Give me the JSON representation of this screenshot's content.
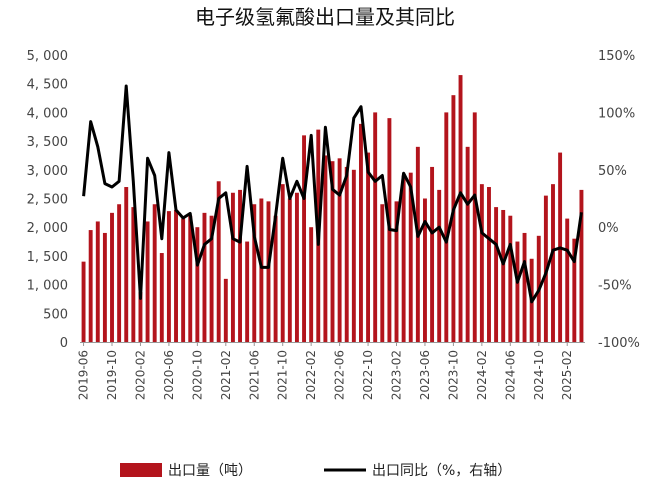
{
  "chart_data": {
    "type": "bar",
    "title": "电子级氢氟酸出口量及其同比",
    "colors": {
      "bar": "#B3141C",
      "line": "#000000"
    },
    "y_left": {
      "ylim": [
        0,
        5000
      ],
      "ticks": [
        0,
        500,
        1000,
        1500,
        2000,
        2500,
        3000,
        3500,
        4000,
        4500,
        5000
      ],
      "tick_labels": [
        "0",
        "500",
        "1, 000",
        "1, 500",
        "2, 000",
        "2, 500",
        "3, 000",
        "3, 500",
        "4, 000",
        "4, 500",
        "5, 000"
      ]
    },
    "y_right": {
      "ylim": [
        -100,
        150
      ],
      "ticks": [
        -100,
        -50,
        0,
        50,
        100,
        150
      ],
      "tick_labels": [
        "-100%",
        "-50%",
        "0%",
        "50%",
        "100%",
        "150%"
      ]
    },
    "x_tick_labels": [
      {
        "index": 0,
        "label": "2019-06"
      },
      {
        "index": 4,
        "label": "2019-10"
      },
      {
        "index": 8,
        "label": "2020-02"
      },
      {
        "index": 12,
        "label": "2020-06"
      },
      {
        "index": 16,
        "label": "2020-10"
      },
      {
        "index": 20,
        "label": "2021-02"
      },
      {
        "index": 24,
        "label": "2021-06"
      },
      {
        "index": 28,
        "label": "2021-10"
      },
      {
        "index": 32,
        "label": "2022-02"
      },
      {
        "index": 36,
        "label": "2022-06"
      },
      {
        "index": 40,
        "label": "2022-10"
      },
      {
        "index": 44,
        "label": "2023-02"
      },
      {
        "index": 48,
        "label": "2023-06"
      },
      {
        "index": 52,
        "label": "2023-10"
      },
      {
        "index": 56,
        "label": "2024-02"
      },
      {
        "index": 60,
        "label": "2024-06"
      },
      {
        "index": 64,
        "label": "2024-10"
      },
      {
        "index": 68,
        "label": "2025-02"
      }
    ],
    "series": [
      {
        "name": "出口量（吨）",
        "type": "bar",
        "axis": "left",
        "values": [
          1400,
          1950,
          2100,
          1900,
          2250,
          2400,
          2700,
          2350,
          870,
          2100,
          2400,
          1550,
          2280,
          2300,
          2150,
          2200,
          2000,
          2250,
          2200,
          2800,
          1100,
          2600,
          2650,
          1750,
          2400,
          2500,
          2450,
          2200,
          2750,
          2500,
          2600,
          3600,
          2000,
          3700,
          3250,
          3150,
          3200,
          3050,
          3000,
          3800,
          3300,
          4000,
          2400,
          3900,
          2450,
          2900,
          2950,
          3400,
          2500,
          3050,
          2650,
          4000,
          4300,
          4650,
          3400,
          4000,
          2750,
          2700,
          2350,
          2300,
          2200,
          1750,
          1900,
          1450,
          1850,
          2550,
          2750,
          3300,
          2150,
          1800,
          2650
        ]
      },
      {
        "name": "出口同比（%，右轴）",
        "type": "line",
        "axis": "right",
        "values": [
          27,
          92,
          70,
          38,
          35,
          40,
          123,
          40,
          -62,
          60,
          45,
          -10,
          65,
          15,
          8,
          12,
          -33,
          -15,
          -10,
          25,
          30,
          -10,
          -13,
          53,
          -8,
          -35,
          -35,
          10,
          60,
          25,
          40,
          25,
          80,
          -15,
          87,
          33,
          28,
          45,
          95,
          105,
          48,
          40,
          45,
          -2,
          -3,
          47,
          35,
          -8,
          5,
          -5,
          0,
          -13,
          15,
          30,
          20,
          28,
          -5,
          -10,
          -15,
          -32,
          -15,
          -48,
          -30,
          -65,
          -55,
          -40,
          -20,
          -18,
          -20,
          -30,
          13
        ]
      }
    ],
    "legend": {
      "placement": "bottom"
    },
    "grid": false
  }
}
